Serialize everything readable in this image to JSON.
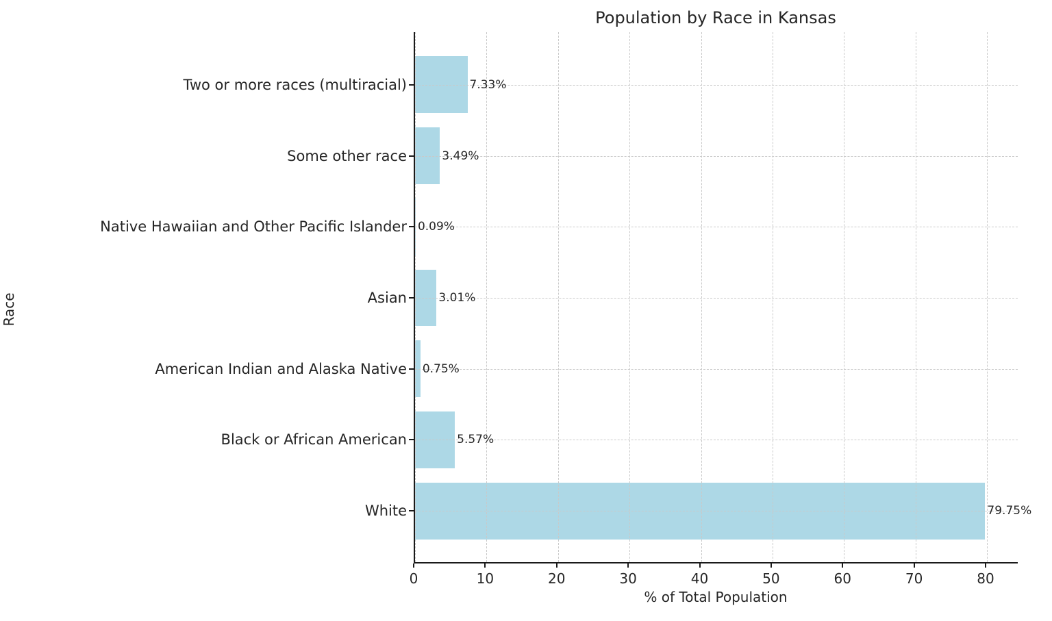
{
  "chart_data": {
    "type": "bar",
    "orientation": "horizontal",
    "title": "Population by Race in Kansas",
    "xlabel": "% of Total Population",
    "ylabel": "Race",
    "categories": [
      "Two or more races (multiracial)",
      "Some other race",
      "Native Hawaiian and Other Pacific Islander",
      "Asian",
      "American Indian and Alaska Native",
      "Black or African American",
      "White"
    ],
    "values": [
      7.33,
      3.49,
      0.09,
      3.01,
      0.75,
      5.57,
      79.75
    ],
    "value_labels": [
      "7.33%",
      "3.49%",
      "0.09%",
      "3.01%",
      "0.75%",
      "5.57%",
      "79.75%"
    ],
    "xticks": [
      0,
      10,
      20,
      30,
      40,
      50,
      60,
      70,
      80
    ],
    "xtick_labels": [
      "0",
      "10",
      "20",
      "30",
      "40",
      "50",
      "60",
      "70",
      "80"
    ],
    "xlim": [
      0,
      84.5
    ],
    "bar_color": "#ADD8E6",
    "grid": "dashed",
    "legend": "none"
  }
}
